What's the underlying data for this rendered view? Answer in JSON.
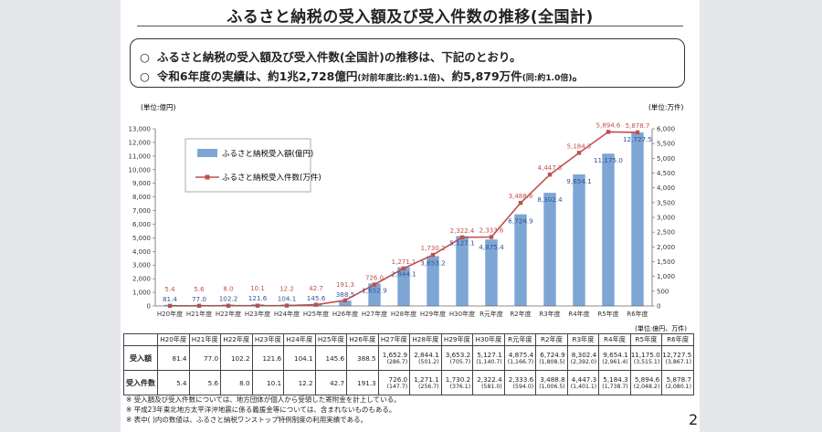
{
  "title": "ふるさと納税の受入額及び受入件数の推移(全国計)",
  "summary": {
    "mark": "○",
    "line1": "ふるさと納税の受入額及び受入件数(全国計)の推移は、下記のとおり。",
    "line2_a": "令和6年度の実績は、約1兆2,728億円",
    "line2_b": "(対前年度比:約1.1倍)",
    "line2_c": "、約5,879万件",
    "line2_d": "(同:約1.0倍)",
    "line2_e": "。"
  },
  "chart_data": {
    "type": "bar",
    "categories": [
      "H20年度",
      "H21年度",
      "H22年度",
      "H23年度",
      "H24年度",
      "H25年度",
      "H26年度",
      "H27年度",
      "H28年度",
      "H29年度",
      "H30年度",
      "R元年度",
      "R2年度",
      "R3年度",
      "R4年度",
      "R5年度",
      "R6年度"
    ],
    "series": [
      {
        "name": "ふるさと納税受入額(億円)",
        "type": "bar",
        "axis": "left",
        "color": "#7ea6d4",
        "values": [
          81.4,
          77.0,
          102.2,
          121.6,
          104.1,
          145.6,
          388.5,
          1652.9,
          2844.1,
          3653.2,
          5127.1,
          4875.4,
          6724.9,
          8302.4,
          9654.1,
          11175.0,
          12727.5
        ],
        "labels": [
          "81.4",
          "77.0",
          "102.2",
          "121.6",
          "104.1",
          "145.6",
          "388.5",
          "1,652.9",
          "2,844.1",
          "3,653.2",
          "5,127.1",
          "4,875.4",
          "6,724.9",
          "8,302.4",
          "9,654.1",
          "11,175.0",
          "12,727.5"
        ]
      },
      {
        "name": "ふるさと納税受入件数(万件)",
        "type": "line",
        "axis": "right",
        "color": "#c0504d",
        "values": [
          5.4,
          5.6,
          8.0,
          10.1,
          12.2,
          42.7,
          191.3,
          726.0,
          1271.1,
          1730.2,
          2322.4,
          2333.6,
          3488.8,
          4447.3,
          5184.3,
          5894.6,
          5878.7
        ],
        "labels": [
          "5.4",
          "5.6",
          "8.0",
          "10.1",
          "12.2",
          "42.7",
          "191.3",
          "726.0",
          "1,271.1",
          "1,730.2",
          "2,322.4",
          "2,333.6",
          "3,488.8",
          "4,447.3",
          "5,184.3",
          "5,894.6",
          "5,878.7"
        ]
      }
    ],
    "ylim_left": [
      0,
      13000
    ],
    "ylim_right": [
      0,
      6000
    ],
    "ylabel_left": "(単位:億円)",
    "ylabel_right": "(単位:万件)",
    "unit_note": "(単位:億円、万件)",
    "yticks_left": [
      "0",
      "1,000",
      "2,000",
      "3,000",
      "4,000",
      "5,000",
      "6,000",
      "7,000",
      "8,000",
      "9,000",
      "10,000",
      "11,000",
      "12,000",
      "13,000"
    ],
    "yticks_right": [
      "0",
      "500",
      "1,000",
      "1,500",
      "2,000",
      "2,500",
      "3,000",
      "3,500",
      "4,000",
      "4,500",
      "5,000",
      "5,500",
      "6,000"
    ],
    "legend": "top-left",
    "grid": false
  },
  "table": {
    "row_labels": [
      "受入額",
      "受入件数"
    ],
    "amount": [
      "81.4",
      "77.0",
      "102.2",
      "121.6",
      "104.1",
      "145.6",
      "388.5",
      "1,652.9",
      "2,844.1",
      "3,653.2",
      "5,127.1",
      "4,875.4",
      "6,724.9",
      "8,302.4",
      "9,654.1",
      "11,175.0",
      "12,727.5"
    ],
    "amount_paren": [
      "",
      "",
      "",
      "",
      "",
      "",
      "",
      "(286.7)",
      "(501.2)",
      "(705.7)",
      "(1,140.7)",
      "(1,166.7)",
      "(1,808.5)",
      "(2,392.0)",
      "(2,961.4)",
      "(3,515.1)",
      "(3,867.1)"
    ],
    "count": [
      "5.4",
      "5.6",
      "8.0",
      "10.1",
      "12.2",
      "42.7",
      "191.3",
      "726.0",
      "1,271.1",
      "1,730.2",
      "2,322.4",
      "2,333.6",
      "3,488.8",
      "4,447.3",
      "5,184.3",
      "5,894.6",
      "5,878.7"
    ],
    "count_paren": [
      "",
      "",
      "",
      "",
      "",
      "",
      "",
      "(147.7)",
      "(256.7)",
      "(376.1)",
      "(581.0)",
      "(594.0)",
      "(1,006.5)",
      "(1,401.1)",
      "(1,738.7)",
      "(2,048.2)",
      "(2,080.1)"
    ]
  },
  "notes": [
    "※  受入額及び受入件数については、地方団体が個人から受領した寄附金を計上している。",
    "※  平成23年東北地方太平洋沖地震に係る義援金等については、含まれないものもある。",
    "※  表中( )内の数値は、ふるさと納税ワンストップ特例制度の利用実績である。"
  ],
  "page_number": "2",
  "colors": {
    "bar": "#7ea6d4",
    "line": "#c0504d",
    "side": "#e6e7ea"
  }
}
